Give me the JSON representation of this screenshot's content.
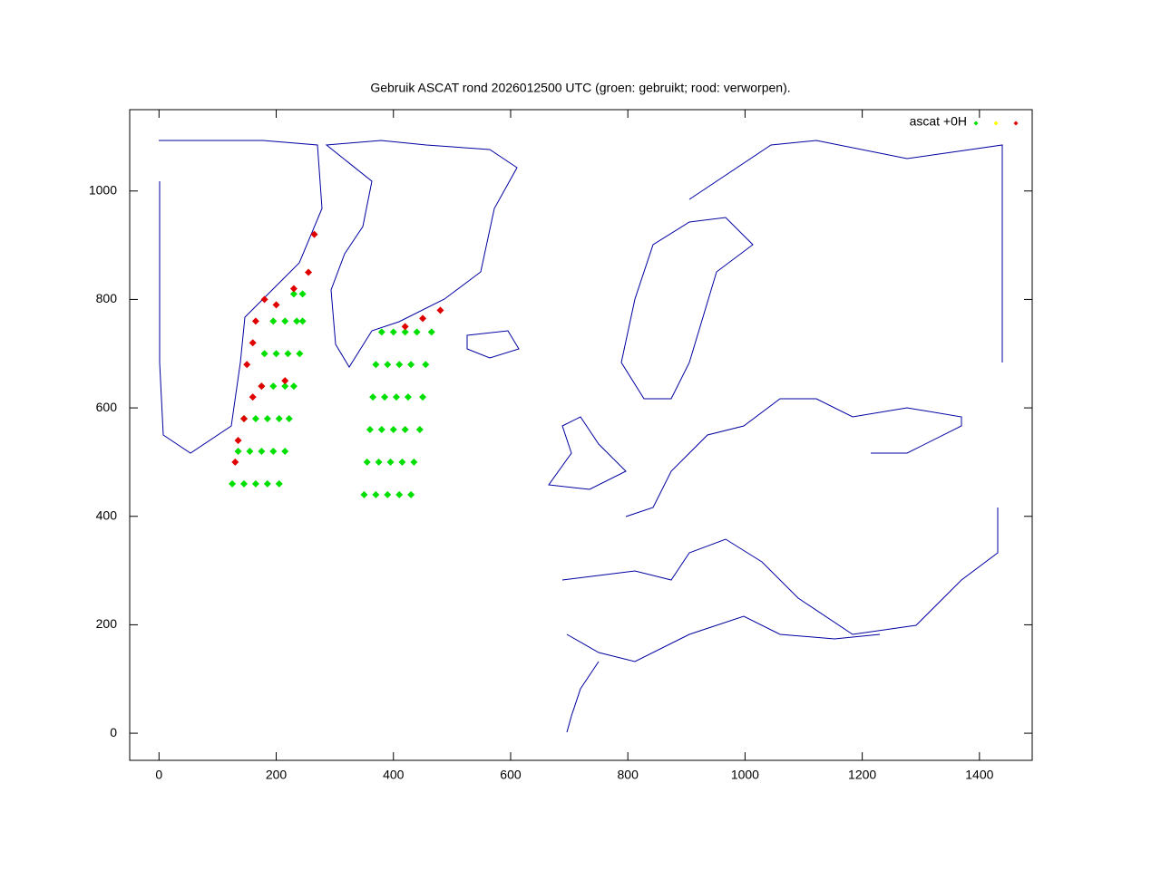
{
  "chart_data": {
    "type": "scatter",
    "title": "Gebruik ASCAT rond 2026012500 UTC (groen: gebruikt; rood: verworpen).",
    "legend_title": "ascat +0H",
    "legend": "top-right",
    "xlim": [
      -50,
      1490
    ],
    "ylim": [
      -50,
      1150
    ],
    "xticks": [
      0,
      200,
      400,
      600,
      800,
      1000,
      1200,
      1400
    ],
    "yticks": [
      0,
      200,
      400,
      600,
      800,
      1000
    ],
    "series": [
      {
        "color": "#00e000",
        "x": [
          125,
          145,
          165,
          185,
          205,
          135,
          155,
          175,
          195,
          215,
          145,
          165,
          185,
          205,
          222,
          175,
          195,
          215,
          230,
          180,
          200,
          220,
          240,
          195,
          215,
          235,
          245,
          230,
          245,
          350,
          370,
          390,
          410,
          430,
          355,
          375,
          395,
          415,
          435,
          360,
          380,
          400,
          420,
          445,
          365,
          385,
          405,
          425,
          450,
          370,
          390,
          410,
          430,
          455,
          380,
          400,
          420,
          440,
          465
        ],
        "y": [
          460,
          460,
          460,
          460,
          460,
          520,
          520,
          520,
          520,
          520,
          580,
          580,
          580,
          580,
          580,
          640,
          640,
          640,
          640,
          700,
          700,
          700,
          700,
          760,
          760,
          760,
          760,
          810,
          810,
          440,
          440,
          440,
          440,
          440,
          500,
          500,
          500,
          500,
          500,
          560,
          560,
          560,
          560,
          560,
          620,
          620,
          620,
          620,
          620,
          680,
          680,
          680,
          680,
          680,
          740,
          740,
          740,
          740,
          740
        ]
      },
      {
        "color": "#ffff00",
        "x": [],
        "y": []
      },
      {
        "color": "#e00000",
        "x": [
          130,
          135,
          145,
          160,
          175,
          150,
          160,
          165,
          180,
          200,
          230,
          255,
          265,
          215,
          420,
          450,
          480
        ],
        "y": [
          500,
          540,
          580,
          620,
          640,
          680,
          720,
          760,
          800,
          790,
          820,
          850,
          920,
          650,
          750,
          765,
          780
        ]
      }
    ]
  }
}
